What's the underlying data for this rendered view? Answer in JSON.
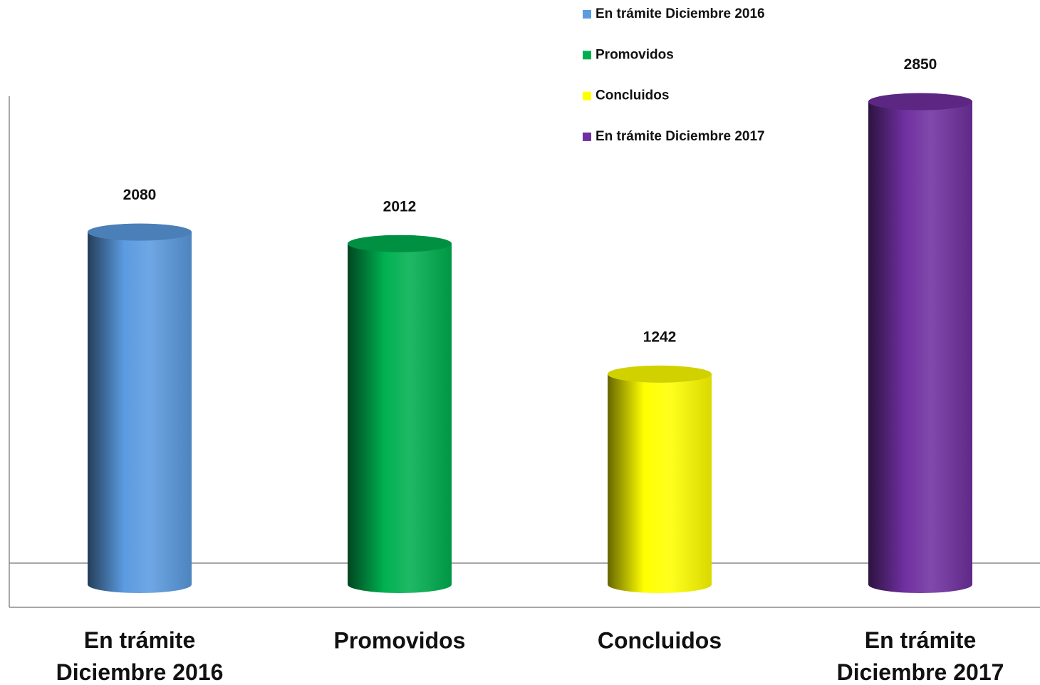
{
  "chart_data": {
    "type": "bar",
    "categories": [
      "En trámite Diciembre 2016",
      "Promovidos",
      "Concluidos",
      "En trámite Diciembre 2017"
    ],
    "values": [
      2080,
      2012,
      1242,
      2850
    ],
    "colors": [
      "#5b9be0",
      "#00b050",
      "#ffff00",
      "#7030a0"
    ],
    "ylim": [
      0,
      3000
    ],
    "legend": "top"
  }
}
